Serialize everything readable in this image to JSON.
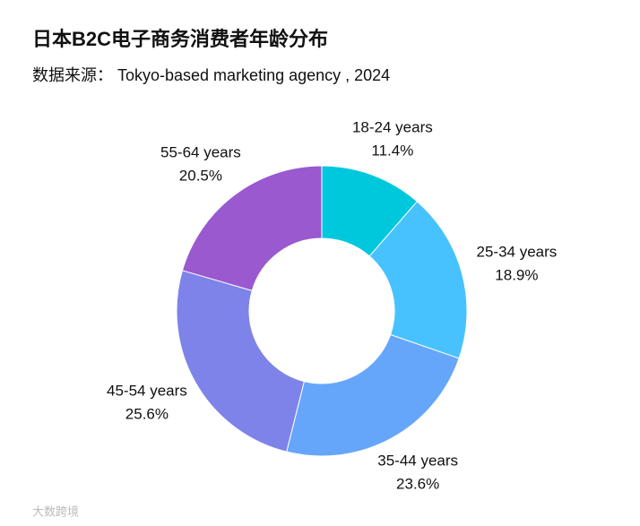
{
  "chart_data": {
    "type": "donut",
    "title": "日本B2C电子商务消费者年龄分布",
    "subtitle": "数据来源： Tokyo-based marketing agency , 2024",
    "watermark": "大数跨境",
    "categories": [
      "18-24 years",
      "25-34 years",
      "35-44 years",
      "45-54 years",
      "55-64 years"
    ],
    "values": [
      11.4,
      18.9,
      23.6,
      25.6,
      20.5
    ],
    "value_labels": [
      "11.4%",
      "18.9%",
      "23.6%",
      "25.6%",
      "20.5%"
    ],
    "colors": [
      "#00c8dc",
      "#47c2ff",
      "#65a6fb",
      "#7d83e8",
      "#9a59cf"
    ]
  }
}
